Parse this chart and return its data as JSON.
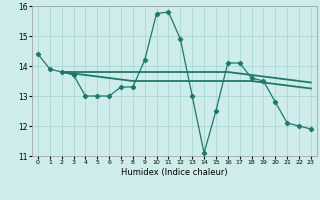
{
  "xlabel": "Humidex (Indice chaleur)",
  "background_color": "#ceecea",
  "grid_color": "#a8d8d4",
  "line_color": "#1a7a6e",
  "xlim": [
    -0.5,
    23.5
  ],
  "ylim": [
    11,
    16
  ],
  "xticks": [
    0,
    1,
    2,
    3,
    4,
    5,
    6,
    7,
    8,
    9,
    10,
    11,
    12,
    13,
    14,
    15,
    16,
    17,
    18,
    19,
    20,
    21,
    22,
    23
  ],
  "yticks": [
    11,
    12,
    13,
    14,
    15,
    16
  ],
  "line1_x": [
    0,
    1,
    2,
    3,
    4,
    5,
    6,
    7,
    8,
    9,
    10,
    11,
    12,
    13,
    14,
    15,
    16,
    17,
    18,
    19,
    20,
    21,
    22,
    23
  ],
  "line1_y": [
    14.4,
    13.9,
    13.8,
    13.7,
    13.0,
    13.0,
    13.0,
    13.3,
    13.3,
    14.2,
    15.75,
    15.8,
    14.9,
    13.0,
    11.1,
    12.5,
    14.1,
    14.1,
    13.6,
    13.5,
    12.8,
    12.1,
    12.0,
    11.9
  ],
  "line2_x": [
    2,
    3,
    4,
    5,
    6,
    7,
    8,
    9,
    10,
    11,
    12,
    13,
    14,
    15,
    16,
    17,
    18,
    19,
    20,
    21,
    22,
    23
  ],
  "line2_y": [
    13.8,
    13.75,
    13.7,
    13.65,
    13.6,
    13.55,
    13.5,
    13.5,
    13.5,
    13.5,
    13.5,
    13.5,
    13.5,
    13.5,
    13.5,
    13.5,
    13.5,
    13.45,
    13.4,
    13.35,
    13.3,
    13.25
  ],
  "line3_x": [
    2,
    3,
    4,
    5,
    6,
    7,
    8,
    9,
    10,
    11,
    12,
    13,
    14,
    15,
    16,
    17,
    18,
    19,
    20,
    21,
    22,
    23
  ],
  "line3_y": [
    13.8,
    13.8,
    13.8,
    13.8,
    13.8,
    13.8,
    13.8,
    13.8,
    13.8,
    13.8,
    13.8,
    13.8,
    13.8,
    13.8,
    13.8,
    13.75,
    13.7,
    13.65,
    13.6,
    13.55,
    13.5,
    13.45
  ]
}
